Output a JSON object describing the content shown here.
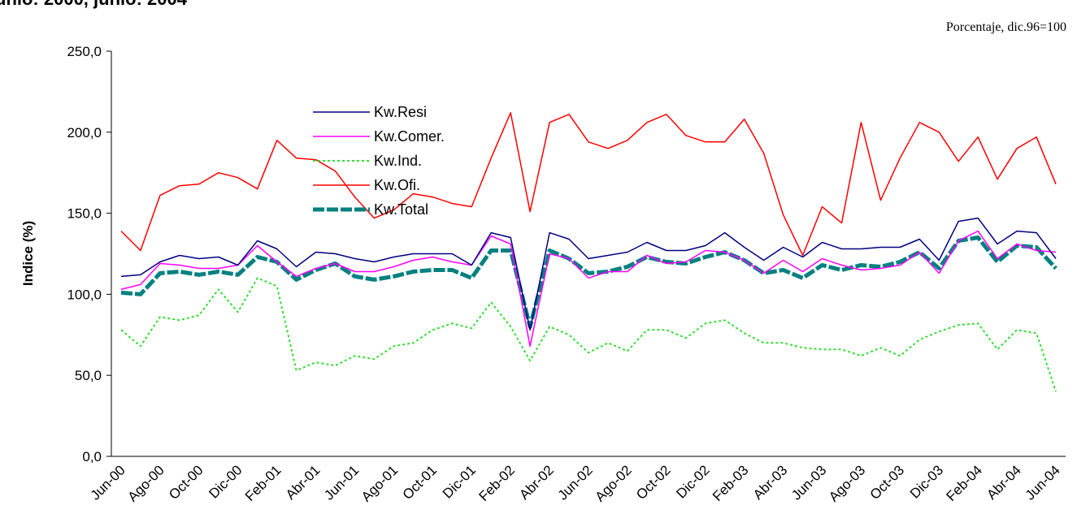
{
  "chart_data": {
    "type": "line",
    "title": "unio: 2000, junio: 2004",
    "subtitle": "Porcentaje, dic.96=100",
    "y_label": "Indice (%)",
    "categories": [
      "Jun-00",
      null,
      "Ago-00",
      null,
      "Oct-00",
      null,
      "Dic-00",
      null,
      "Feb-01",
      null,
      "Abr-01",
      null,
      "Jun-01",
      null,
      "Ago-01",
      null,
      "Oct-01",
      null,
      "Dic-01",
      null,
      "Feb-02",
      null,
      "Abr-02",
      null,
      "Jun-02",
      null,
      "Ago-02",
      null,
      "Oct-02",
      null,
      "Dic-02",
      null,
      "Feb-03",
      null,
      "Abr-03",
      null,
      "Jun-03",
      null,
      "Ago-03",
      null,
      "Oct-03",
      null,
      "Dic-03",
      null,
      "Feb-04",
      null,
      "Abr-04",
      null,
      "Jun-04"
    ],
    "series": [
      {
        "name": "Kw.Resi",
        "color": "#000080",
        "line_style": "solid",
        "values": [
          111,
          112,
          120,
          124,
          122,
          123,
          118,
          133,
          128,
          117,
          126,
          125,
          122,
          120,
          123,
          125,
          125,
          125,
          118,
          138,
          135,
          78,
          138,
          134,
          122,
          124,
          126,
          132,
          127,
          127,
          130,
          138,
          129,
          121,
          129,
          123,
          132,
          128,
          128,
          129,
          129,
          134,
          121,
          145,
          147,
          131,
          139,
          138,
          122
        ]
      },
      {
        "name": "Kw.Comer.",
        "color": "#ff00ff",
        "line_style": "solid",
        "values": [
          103,
          106,
          119,
          118,
          116,
          116,
          118,
          130,
          120,
          111,
          116,
          119,
          114,
          114,
          117,
          121,
          123,
          120,
          118,
          136,
          131,
          68,
          125,
          122,
          110,
          114,
          114,
          124,
          119,
          120,
          127,
          126,
          121,
          113,
          121,
          114,
          122,
          118,
          115,
          116,
          118,
          126,
          113,
          133,
          139,
          122,
          131,
          127,
          126
        ]
      },
      {
        "name": "Kw.Ind.",
        "color": "#33dd33",
        "line_style": "dotted",
        "values": [
          78,
          68,
          86,
          84,
          87,
          103,
          89,
          110,
          105,
          53,
          58,
          56,
          62,
          60,
          68,
          70,
          78,
          82,
          79,
          95,
          80,
          59,
          80,
          75,
          64,
          70,
          65,
          78,
          78,
          73,
          82,
          84,
          76,
          70,
          70,
          67,
          66,
          66,
          62,
          67,
          62,
          72,
          77,
          81,
          82,
          66,
          78,
          76,
          40
        ]
      },
      {
        "name": "Kw.Ofi.",
        "color": "#ff0000",
        "line_style": "solid",
        "values": [
          139,
          127,
          161,
          167,
          168,
          175,
          172,
          165,
          195,
          184,
          183,
          176,
          160,
          147,
          152,
          162,
          160,
          156,
          154,
          184,
          212,
          151,
          206,
          211,
          194,
          190,
          195,
          206,
          211,
          198,
          194,
          194,
          208,
          187,
          149,
          124,
          154,
          144,
          206,
          158,
          184,
          206,
          200,
          182,
          197,
          171,
          190,
          197,
          168
        ]
      },
      {
        "name": "Kw.Total",
        "color": "#008080",
        "line_style": "dashed",
        "values": [
          101,
          100,
          113,
          114,
          112,
          114,
          112,
          123,
          120,
          109,
          115,
          119,
          111,
          109,
          111,
          114,
          115,
          115,
          110,
          127,
          127,
          80,
          127,
          122,
          113,
          114,
          117,
          123,
          120,
          119,
          123,
          126,
          121,
          113,
          115,
          110,
          118,
          115,
          118,
          117,
          120,
          126,
          116,
          133,
          135,
          120,
          130,
          129,
          116
        ]
      }
    ],
    "ylim": [
      0,
      250
    ],
    "yticks": [
      {
        "value": 0,
        "label": "0,0"
      },
      {
        "value": 50,
        "label": "50,0"
      },
      {
        "value": 100,
        "label": "100,0"
      },
      {
        "value": 150,
        "label": "150,0"
      },
      {
        "value": 200,
        "label": "200,0"
      },
      {
        "value": 250,
        "label": "250,0"
      }
    ],
    "grid": false
  }
}
